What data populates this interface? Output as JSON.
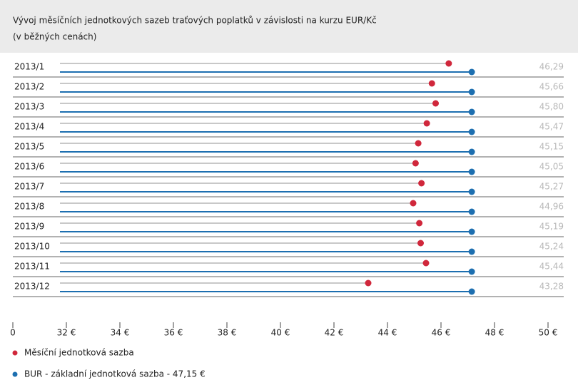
{
  "chart_data": {
    "type": "dot",
    "title": [
      "Vývoj měsíčních jednotkových sazeb traťových poplatků v závislosti na kurzu EUR/Kč",
      "(v běžných cenách)"
    ],
    "categories": [
      "2013/1",
      "2013/2",
      "2013/3",
      "2013/4",
      "2013/5",
      "2013/6",
      "2013/7",
      "2013/8",
      "2013/9",
      "2013/10",
      "2013/11",
      "2013/12"
    ],
    "series": [
      {
        "name": "Měsíční jednotková sazba",
        "color": "#d0273b",
        "line_color": "#b5b5b5",
        "values": [
          46.29,
          45.66,
          45.8,
          45.47,
          45.15,
          45.05,
          45.27,
          44.96,
          45.19,
          45.24,
          45.44,
          43.28
        ],
        "value_labels": [
          "46,29",
          "45,66",
          "45,80",
          "45,47",
          "45,15",
          "45,05",
          "45,27",
          "44,96",
          "45,19",
          "45,24",
          "45,44",
          "43,28"
        ]
      },
      {
        "name": "BUR - základní jednotková sazba - 47,15 €",
        "color": "#1d6fb0",
        "line_color": "#1d6fb0",
        "values": [
          47.15,
          47.15,
          47.15,
          47.15,
          47.15,
          47.15,
          47.15,
          47.15,
          47.15,
          47.15,
          47.15,
          47.15
        ]
      }
    ],
    "xlim": [
      0,
      50
    ],
    "xticks": [
      0,
      {
        "value": 32,
        "label": "32 €"
      },
      {
        "value": 34,
        "label": "34 €"
      },
      {
        "value": 36,
        "label": "36 €"
      },
      {
        "value": 38,
        "label": "38 €"
      },
      {
        "value": 40,
        "label": "40 €"
      },
      {
        "value": 42,
        "label": "42 €"
      },
      {
        "value": 44,
        "label": "44 €"
      },
      {
        "value": 46,
        "label": "46 €"
      },
      {
        "value": 48,
        "label": "48 €"
      },
      {
        "value": 50,
        "label": "50 €"
      }
    ],
    "axis_break": true
  }
}
